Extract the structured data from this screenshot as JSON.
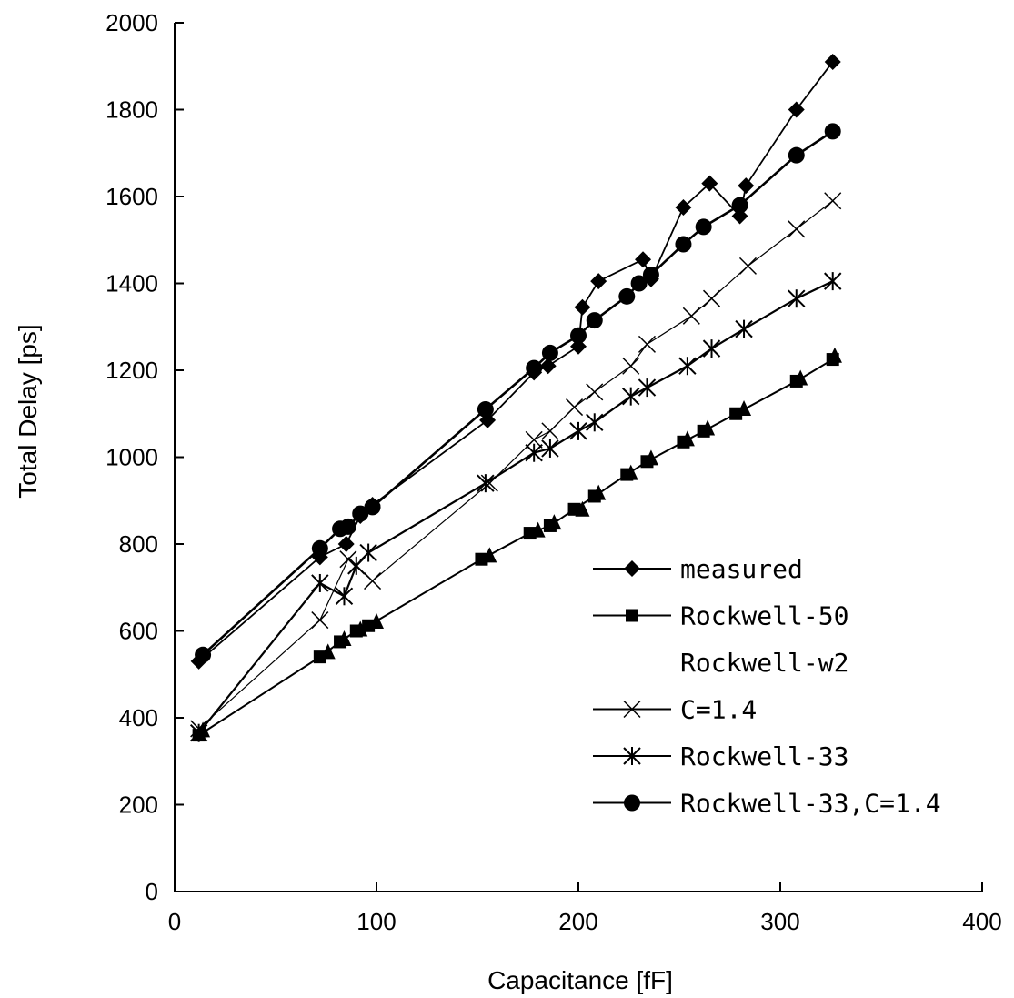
{
  "chart_data": {
    "type": "line",
    "xlabel": "Capacitance [fF]",
    "ylabel": "Total Delay  [ps]",
    "xlim": [
      0,
      400
    ],
    "ylim": [
      0,
      2000
    ],
    "xticks": [
      0,
      100,
      200,
      300,
      400
    ],
    "yticks": [
      0,
      200,
      400,
      600,
      800,
      1000,
      1200,
      1400,
      1600,
      1800,
      2000
    ],
    "grid": false,
    "legend_position": "bottom-right",
    "series": [
      {
        "name": "measured",
        "marker": "diamond",
        "x": [
          12,
          72,
          85,
          92,
          98,
          155,
          178,
          185,
          200,
          202,
          210,
          232,
          236,
          252,
          265,
          280,
          283,
          308,
          326
        ],
        "y": [
          530,
          770,
          800,
          865,
          890,
          1085,
          1195,
          1210,
          1255,
          1345,
          1405,
          1455,
          1410,
          1575,
          1630,
          1555,
          1625,
          1800,
          1910
        ]
      },
      {
        "name": "Rockwell-50",
        "marker": "square",
        "x": [
          12,
          72,
          82,
          90,
          96,
          152,
          176,
          186,
          198,
          208,
          224,
          234,
          252,
          262,
          278,
          308,
          326
        ],
        "y": [
          360,
          540,
          575,
          600,
          612,
          765,
          825,
          842,
          880,
          910,
          960,
          990,
          1035,
          1060,
          1100,
          1175,
          1225
        ]
      },
      {
        "name": "Rockwell-w2",
        "marker": "triangle",
        "x": [
          14,
          76,
          84,
          92,
          100,
          156,
          180,
          188,
          202,
          210,
          226,
          236,
          254,
          264,
          282,
          310,
          327
        ],
        "y": [
          370,
          550,
          580,
          602,
          620,
          772,
          830,
          848,
          878,
          916,
          962,
          996,
          1040,
          1065,
          1110,
          1180,
          1232
        ]
      },
      {
        "name": "C=1.4",
        "marker": "x",
        "x": [
          12,
          72,
          86,
          98,
          156,
          178,
          186,
          198,
          208,
          226,
          234,
          256,
          266,
          284,
          308,
          326
        ],
        "y": [
          375,
          625,
          765,
          715,
          940,
          1040,
          1060,
          1115,
          1150,
          1210,
          1260,
          1325,
          1365,
          1440,
          1525,
          1590
        ]
      },
      {
        "name": "Rockwell-33",
        "marker": "asterisk",
        "x": [
          12,
          72,
          84,
          90,
          96,
          154,
          178,
          186,
          200,
          208,
          226,
          234,
          254,
          266,
          282,
          308,
          326
        ],
        "y": [
          365,
          710,
          680,
          750,
          780,
          940,
          1010,
          1020,
          1060,
          1080,
          1140,
          1160,
          1210,
          1250,
          1295,
          1365,
          1405
        ]
      },
      {
        "name": "Rockwell-33,C=1.4",
        "marker": "circle",
        "x": [
          14,
          72,
          82,
          86,
          92,
          98,
          154,
          178,
          186,
          200,
          208,
          224,
          230,
          236,
          252,
          262,
          280,
          308,
          326
        ],
        "y": [
          545,
          790,
          835,
          840,
          870,
          885,
          1110,
          1205,
          1240,
          1280,
          1315,
          1370,
          1400,
          1420,
          1490,
          1530,
          1580,
          1695,
          1750
        ]
      }
    ]
  }
}
